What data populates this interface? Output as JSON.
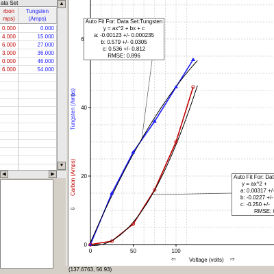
{
  "table": {
    "title": "ata Set",
    "carbon_header": [
      "rbon",
      "mps)"
    ],
    "tungsten_header": [
      "Tungsten",
      "(Amps)"
    ],
    "rows": [
      {
        "carbon": "0.000",
        "tungsten": "0.000"
      },
      {
        "carbon": "4.000",
        "tungsten": "15.000"
      },
      {
        "carbon": "6.000",
        "tungsten": "27.000"
      },
      {
        "carbon": "3.000",
        "tungsten": "36.000"
      },
      {
        "carbon": "0.000",
        "tungsten": "46.000"
      },
      {
        "carbon": "6.000",
        "tungsten": "54.000"
      }
    ]
  },
  "graph": {
    "y_axis_label_tungsten": "Tungsten (Amps)",
    "y_axis_label_carbon": "Carbon (Amps)",
    "x_axis_label": "Voltage (volts)",
    "y_ticks": [
      "0",
      "20",
      "40",
      "60"
    ],
    "x_ticks": [
      "0",
      "50",
      "100"
    ],
    "status_text": "(137.6763, 56.93)"
  },
  "fit_tungsten": {
    "title": "Auto Fit For:  Data Set:Tungsten",
    "equation": "y = ax^2 + bx + c",
    "a": "a: -0.00123 +/- 0.000235",
    "b": "b: 0.579 +/- 0.0305",
    "c": "c: 0.536 +/- 0.812",
    "rmse": "RMSE: 0.896"
  },
  "fit_carbon": {
    "title": "Auto Fit For:  Data",
    "equation": "y = ax^2 +",
    "a": "a: 0.00317 +/-",
    "b": "b: -0.0227 +/-",
    "c": "c: -0.250 +/-",
    "rmse": "RMSE: 0"
  },
  "colors": {
    "tungsten": "#1a1aff",
    "carbon": "#c00000",
    "fit": "#000000"
  },
  "chart_data": {
    "type": "scatter",
    "xlabel": "Voltage (volts)",
    "ylabel": "Tungsten (Amps)",
    "xlim": [
      0,
      120
    ],
    "ylim": [
      0,
      70
    ],
    "series": [
      {
        "name": "Tungsten",
        "x": [
          0,
          25,
          50,
          75,
          100,
          120
        ],
        "y": [
          0,
          15,
          27,
          36,
          46,
          54
        ]
      },
      {
        "name": "Carbon",
        "x": [
          0,
          25,
          50,
          75,
          100,
          120
        ],
        "y": [
          0,
          1,
          6,
          16,
          30,
          46
        ]
      }
    ]
  }
}
